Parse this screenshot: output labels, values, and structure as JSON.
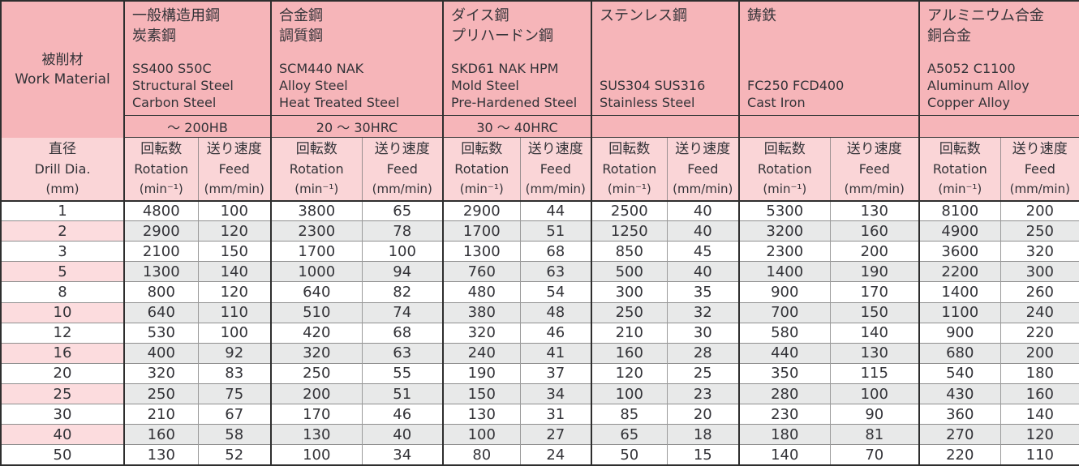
{
  "table": {
    "work_material": {
      "ja": "被削材",
      "en": "Work Material"
    },
    "materials": [
      {
        "name_ja": [
          "一般構造用鋼",
          "炭素鋼"
        ],
        "name_en": [
          "SS400 S50C",
          "Structural Steel",
          "Carbon Steel"
        ],
        "hardness": "～ 200HB"
      },
      {
        "name_ja": [
          "合金鋼",
          "調質鋼"
        ],
        "name_en": [
          "SCM440 NAK",
          "Alloy Steel",
          "Heat Treated Steel"
        ],
        "hardness": "20 ～ 30HRC"
      },
      {
        "name_ja": [
          "ダイス鋼",
          "プリハードン鋼"
        ],
        "name_en": [
          "SKD61 NAK HPM",
          "Mold Steel",
          "Pre-Hardened Steel"
        ],
        "hardness": "30 ～ 40HRC"
      },
      {
        "name_ja": [
          "ステンレス鋼"
        ],
        "name_en": [
          "SUS304 SUS316",
          "Stainless Steel"
        ],
        "hardness": ""
      },
      {
        "name_ja": [
          "鋳鉄"
        ],
        "name_en": [
          "FC250 FCD400",
          "Cast Iron"
        ],
        "hardness": ""
      },
      {
        "name_ja": [
          "アルミニウム合金",
          "銅合金"
        ],
        "name_en": [
          "A5052 C1100",
          "Aluminum Alloy",
          "Copper Alloy"
        ],
        "hardness": ""
      }
    ],
    "dia_header": {
      "ja": "直径",
      "en": "Drill Dia.",
      "unit": "(mm)"
    },
    "rotation_header": {
      "ja": "回転数",
      "en": "Rotation",
      "unit": "(min⁻¹)"
    },
    "feed_header": {
      "ja": "送り速度",
      "en": "Feed",
      "unit": "(mm/min)"
    },
    "rows": [
      {
        "dia": "1",
        "values": [
          "4800",
          "100",
          "3800",
          "65",
          "2900",
          "44",
          "2500",
          "40",
          "5300",
          "130",
          "8100",
          "200"
        ]
      },
      {
        "dia": "2",
        "values": [
          "2900",
          "120",
          "2300",
          "78",
          "1700",
          "51",
          "1250",
          "40",
          "3200",
          "160",
          "4900",
          "250"
        ]
      },
      {
        "dia": "3",
        "values": [
          "2100",
          "150",
          "1700",
          "100",
          "1300",
          "68",
          "850",
          "45",
          "2300",
          "200",
          "3600",
          "320"
        ]
      },
      {
        "dia": "5",
        "values": [
          "1300",
          "140",
          "1000",
          "94",
          "760",
          "63",
          "500",
          "40",
          "1400",
          "190",
          "2200",
          "300"
        ]
      },
      {
        "dia": "8",
        "values": [
          "800",
          "120",
          "640",
          "82",
          "480",
          "54",
          "300",
          "35",
          "900",
          "170",
          "1400",
          "260"
        ]
      },
      {
        "dia": "10",
        "values": [
          "640",
          "110",
          "510",
          "74",
          "380",
          "48",
          "250",
          "32",
          "700",
          "150",
          "1100",
          "240"
        ]
      },
      {
        "dia": "12",
        "values": [
          "530",
          "100",
          "420",
          "68",
          "320",
          "46",
          "210",
          "30",
          "580",
          "140",
          "900",
          "220"
        ]
      },
      {
        "dia": "16",
        "values": [
          "400",
          "92",
          "320",
          "63",
          "240",
          "41",
          "160",
          "28",
          "440",
          "130",
          "680",
          "200"
        ]
      },
      {
        "dia": "20",
        "values": [
          "320",
          "83",
          "250",
          "55",
          "190",
          "37",
          "120",
          "25",
          "350",
          "115",
          "540",
          "180"
        ]
      },
      {
        "dia": "25",
        "values": [
          "250",
          "75",
          "200",
          "51",
          "150",
          "34",
          "100",
          "23",
          "280",
          "100",
          "430",
          "160"
        ]
      },
      {
        "dia": "30",
        "values": [
          "210",
          "67",
          "170",
          "46",
          "130",
          "31",
          "85",
          "20",
          "230",
          "90",
          "360",
          "140"
        ]
      },
      {
        "dia": "40",
        "values": [
          "160",
          "58",
          "130",
          "40",
          "100",
          "27",
          "65",
          "18",
          "180",
          "81",
          "270",
          "120"
        ]
      },
      {
        "dia": "50",
        "values": [
          "130",
          "52",
          "100",
          "34",
          "80",
          "24",
          "50",
          "15",
          "140",
          "70",
          "220",
          "110"
        ]
      }
    ],
    "colors": {
      "header_pink": "#f6b5b9",
      "subheader_pink": "#fad5d7",
      "stripe_pink": "#fcdcde",
      "stripe_gray": "#e8e9e9",
      "border_dark": "#2e2e2e",
      "border_light": "#9a9a9a",
      "text": "#333338"
    }
  }
}
